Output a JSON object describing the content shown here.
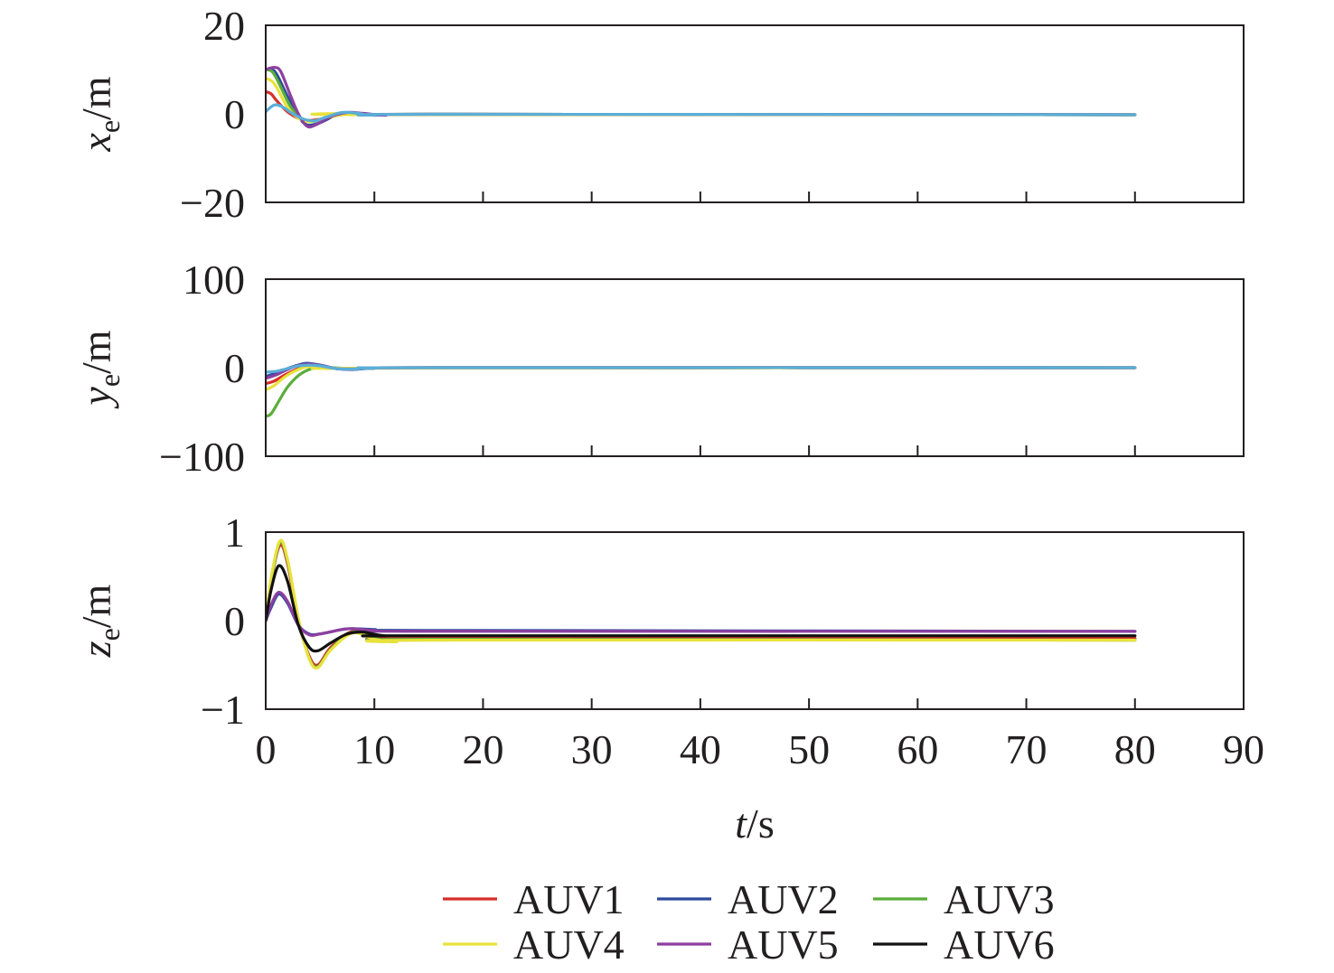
{
  "chart_data": {
    "type": "line",
    "xlabel_var": "t",
    "xlabel_unit": "/s",
    "xlim": [
      0,
      90
    ],
    "xticks": [
      0,
      10,
      20,
      30,
      40,
      50,
      60,
      70,
      80,
      90
    ],
    "legend_placement": "bottom-center",
    "legend": [
      {
        "name": "AUV1",
        "color": "#d6302a"
      },
      {
        "name": "AUV2",
        "color": "#2e4a9e"
      },
      {
        "name": "AUV3",
        "color": "#5aad3a"
      },
      {
        "name": "AUV4",
        "color": "#e8e23c"
      },
      {
        "name": "AUV5",
        "color": "#8e3fa0"
      },
      {
        "name": "AUV6",
        "color": "#111111"
      }
    ],
    "panels": [
      {
        "id": "xe",
        "ylabel_var": "x",
        "ylabel_sub": "e",
        "ylabel_unit": "/m",
        "ylim": [
          -20,
          20
        ],
        "yticks": [
          -20,
          0,
          20
        ],
        "ytick_labels": [
          "−20",
          "0",
          "20"
        ],
        "series": [
          {
            "legend": "AUV1",
            "color": "#d6302a",
            "points": [
              [
                0,
                5
              ],
              [
                0.5,
                4.5
              ],
              [
                1,
                3
              ],
              [
                2,
                0.5
              ],
              [
                3,
                -1
              ],
              [
                4,
                -1.5
              ],
              [
                5,
                -1.2
              ],
              [
                6,
                -0.6
              ],
              [
                7,
                -0.2
              ],
              [
                8,
                0
              ],
              [
                10,
                -0.2
              ],
              [
                15,
                -0.1
              ],
              [
                80,
                -0.2
              ]
            ]
          },
          {
            "legend": "AUV2",
            "color": "#2e4a9e",
            "points": [
              [
                0,
                10
              ],
              [
                0.5,
                10
              ],
              [
                1,
                9
              ],
              [
                2,
                4
              ],
              [
                3,
                -0.5
              ],
              [
                3.8,
                -2.5
              ],
              [
                5,
                -2
              ],
              [
                6.5,
                -0.3
              ],
              [
                8,
                0.2
              ],
              [
                10,
                -0.3
              ],
              [
                15,
                -0.1
              ],
              [
                80,
                -0.2
              ]
            ]
          },
          {
            "legend": "AUV3",
            "color": "#5aad3a",
            "points": [
              [
                0,
                10
              ],
              [
                0.6,
                9.5
              ],
              [
                1.2,
                7
              ],
              [
                2.2,
                2
              ],
              [
                3,
                -0.5
              ],
              [
                4,
                -1.8
              ],
              [
                5,
                -1.3
              ],
              [
                6.5,
                -0.4
              ],
              [
                8,
                0.1
              ],
              [
                10,
                -0.2
              ],
              [
                15,
                -0.1
              ],
              [
                80,
                -0.2
              ]
            ]
          },
          {
            "legend": "AUV4",
            "color": "#e8e23c",
            "points": [
              [
                0,
                8
              ],
              [
                0.5,
                7.5
              ],
              [
                1,
                6
              ],
              [
                2,
                1.5
              ],
              [
                3,
                -1
              ],
              [
                4,
                -1.8
              ],
              [
                5,
                -1.3
              ],
              [
                6.5,
                -0.4
              ],
              [
                8,
                0.1
              ],
              [
                10,
                -0.2
              ],
              [
                80,
                -0.2
              ]
            ]
          },
          {
            "legend": "AUV5",
            "color": "#8e3fa0",
            "points": [
              [
                0,
                10
              ],
              [
                0.8,
                10.5
              ],
              [
                1.4,
                9.5
              ],
              [
                2.3,
                4
              ],
              [
                3,
                0
              ],
              [
                3.8,
                -2.8
              ],
              [
                4.6,
                -2.5
              ],
              [
                6,
                -0.6
              ],
              [
                7.5,
                0.3
              ],
              [
                9,
                0.1
              ],
              [
                11,
                -0.3
              ],
              [
                15,
                -0.1
              ],
              [
                80,
                -0.2
              ]
            ]
          },
          {
            "legend": "",
            "color": "#5aaed8",
            "points": [
              [
                0,
                0.5
              ],
              [
                0.8,
                2
              ],
              [
                1.6,
                1.5
              ],
              [
                2.5,
                0
              ],
              [
                3.5,
                -1.2
              ],
              [
                4.5,
                -1.6
              ],
              [
                5.5,
                -0.8
              ],
              [
                7,
                0.3
              ],
              [
                8.5,
                0.1
              ],
              [
                10,
                -0.3
              ],
              [
                15,
                -0.1
              ],
              [
                80,
                -0.2
              ]
            ]
          }
        ]
      },
      {
        "id": "ye",
        "ylabel_var": "y",
        "ylabel_sub": "e",
        "ylabel_unit": "/m",
        "ylim": [
          -100,
          100
        ],
        "yticks": [
          -100,
          0,
          100
        ],
        "ytick_labels": [
          "−100",
          "0",
          "100"
        ],
        "series": [
          {
            "legend": "AUV1",
            "color": "#d6302a",
            "points": [
              [
                0,
                -18
              ],
              [
                0.8,
                -15
              ],
              [
                1.8,
                -8
              ],
              [
                3,
                -1
              ],
              [
                4,
                2
              ],
              [
                5,
                1.5
              ],
              [
                6.5,
                -1
              ],
              [
                8,
                -1.5
              ],
              [
                10,
                -0.5
              ],
              [
                15,
                0
              ],
              [
                80,
                0
              ]
            ]
          },
          {
            "legend": "AUV2",
            "color": "#2e4a9e",
            "points": [
              [
                0,
                -10
              ],
              [
                1,
                -6
              ],
              [
                2,
                -1
              ],
              [
                3,
                3
              ],
              [
                3.8,
                5
              ],
              [
                5,
                3
              ],
              [
                6.5,
                -1
              ],
              [
                8,
                -2
              ],
              [
                10,
                -0.5
              ],
              [
                15,
                0
              ],
              [
                80,
                0
              ]
            ]
          },
          {
            "legend": "AUV3",
            "color": "#5aad3a",
            "points": [
              [
                0,
                -55
              ],
              [
                0.5,
                -52
              ],
              [
                1.2,
                -38
              ],
              [
                2,
                -22
              ],
              [
                3,
                -9
              ],
              [
                4,
                -2
              ],
              [
                5,
                0.5
              ],
              [
                6,
                0
              ],
              [
                8,
                -1
              ],
              [
                10,
                -0.5
              ],
              [
                15,
                0
              ],
              [
                80,
                0
              ]
            ]
          },
          {
            "legend": "AUV4",
            "color": "#e8e23c",
            "points": [
              [
                0,
                -25
              ],
              [
                0.8,
                -20
              ],
              [
                1.8,
                -10
              ],
              [
                3,
                -2
              ],
              [
                4,
                1.5
              ],
              [
                5,
                1
              ],
              [
                6.5,
                -1
              ],
              [
                8,
                -1
              ],
              [
                10,
                -0.5
              ],
              [
                80,
                0
              ]
            ]
          },
          {
            "legend": "AUV5",
            "color": "#8e3fa0",
            "points": [
              [
                0,
                -12
              ],
              [
                1,
                -8
              ],
              [
                2,
                -2
              ],
              [
                3,
                2.5
              ],
              [
                4,
                4
              ],
              [
                5,
                2.5
              ],
              [
                6.5,
                -1
              ],
              [
                8,
                -1.5
              ],
              [
                10,
                -0.5
              ],
              [
                15,
                0
              ],
              [
                80,
                0
              ]
            ]
          },
          {
            "legend": "",
            "color": "#5aaed8",
            "points": [
              [
                0,
                -5
              ],
              [
                1,
                -4
              ],
              [
                2,
                -1
              ],
              [
                3,
                2
              ],
              [
                4,
                3
              ],
              [
                5,
                2
              ],
              [
                6.5,
                -1
              ],
              [
                8,
                -1.5
              ],
              [
                10,
                -0.5
              ],
              [
                15,
                0
              ],
              [
                80,
                0
              ]
            ]
          }
        ]
      },
      {
        "id": "ze",
        "ylabel_var": "z",
        "ylabel_sub": "e",
        "ylabel_unit": "/m",
        "ylim": [
          -1,
          1
        ],
        "yticks": [
          -1,
          0,
          1
        ],
        "ytick_labels": [
          "−1",
          "0",
          "1"
        ],
        "series": [
          {
            "legend": "AUV1",
            "color": "#d6302a",
            "points": [
              [
                0,
                0
              ],
              [
                0.5,
                0.45
              ],
              [
                1.3,
                0.85
              ],
              [
                2,
                0.65
              ],
              [
                3,
                0
              ],
              [
                4,
                -0.4
              ],
              [
                4.8,
                -0.5
              ],
              [
                6,
                -0.3
              ],
              [
                8,
                -0.12
              ],
              [
                10,
                -0.18
              ],
              [
                12,
                -0.22
              ],
              [
                15,
                -0.2
              ],
              [
                80,
                -0.2
              ]
            ]
          },
          {
            "legend": "AUV2",
            "color": "#2e4a9e",
            "points": [
              [
                0,
                0
              ],
              [
                0.5,
                0.15
              ],
              [
                1.2,
                0.3
              ],
              [
                2,
                0.2
              ],
              [
                3,
                -0.05
              ],
              [
                4,
                -0.15
              ],
              [
                5,
                -0.15
              ],
              [
                7,
                -0.1
              ],
              [
                8,
                -0.09
              ],
              [
                10,
                -0.1
              ],
              [
                15,
                -0.11
              ],
              [
                80,
                -0.12
              ]
            ]
          },
          {
            "legend": "AUV3",
            "color": "#5aad3a",
            "points": [
              [
                0,
                0
              ],
              [
                0.5,
                0.45
              ],
              [
                1.3,
                0.88
              ],
              [
                2,
                0.68
              ],
              [
                3,
                0.02
              ],
              [
                4,
                -0.42
              ],
              [
                4.8,
                -0.52
              ],
              [
                6,
                -0.32
              ],
              [
                8,
                -0.13
              ],
              [
                10,
                -0.2
              ],
              [
                12,
                -0.23
              ],
              [
                15,
                -0.21
              ],
              [
                80,
                -0.22
              ]
            ]
          },
          {
            "legend": "AUV4",
            "color": "#e8e23c",
            "points": [
              [
                0,
                0
              ],
              [
                0.5,
                0.48
              ],
              [
                1.3,
                0.9
              ],
              [
                2,
                0.7
              ],
              [
                3,
                0.03
              ],
              [
                4,
                -0.43
              ],
              [
                4.8,
                -0.53
              ],
              [
                6,
                -0.33
              ],
              [
                8,
                -0.14
              ],
              [
                10,
                -0.21
              ],
              [
                12,
                -0.24
              ],
              [
                15,
                -0.22
              ],
              [
                80,
                -0.22
              ]
            ]
          },
          {
            "legend": "AUV5",
            "color": "#8e3fa0",
            "points": [
              [
                0,
                0
              ],
              [
                0.5,
                0.18
              ],
              [
                1.2,
                0.32
              ],
              [
                2,
                0.22
              ],
              [
                3,
                -0.05
              ],
              [
                4,
                -0.16
              ],
              [
                5,
                -0.15
              ],
              [
                7,
                -0.1
              ],
              [
                8,
                -0.09
              ],
              [
                10,
                -0.11
              ],
              [
                15,
                -0.12
              ],
              [
                80,
                -0.12
              ]
            ]
          },
          {
            "legend": "AUV6",
            "color": "#111111",
            "points": [
              [
                0,
                0
              ],
              [
                0.5,
                0.35
              ],
              [
                1.2,
                0.62
              ],
              [
                2,
                0.45
              ],
              [
                3,
                -0.05
              ],
              [
                4,
                -0.3
              ],
              [
                4.8,
                -0.34
              ],
              [
                6,
                -0.25
              ],
              [
                7.5,
                -0.15
              ],
              [
                9,
                -0.13
              ],
              [
                11,
                -0.17
              ],
              [
                15,
                -0.17
              ],
              [
                80,
                -0.17
              ]
            ]
          }
        ]
      }
    ]
  }
}
